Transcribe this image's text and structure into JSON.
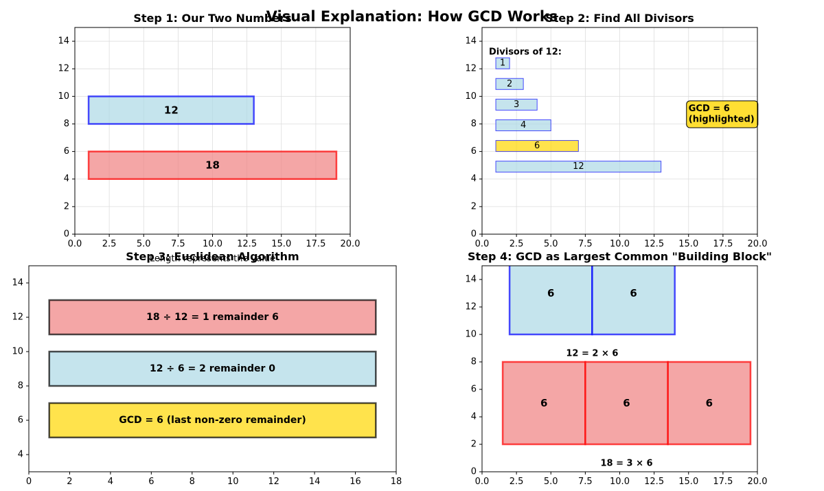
{
  "figure": {
    "title": "Visual Explanation: How GCD Works"
  },
  "colors": {
    "blue_fill": "#add8e6",
    "blue_edge": "#0000ff",
    "red_fill": "#f08080",
    "red_edge": "#ff0000",
    "gold_fill": "#ffd700",
    "dark_edge": "#000000",
    "grid": "#dddddd"
  },
  "panels": [
    {
      "title": "Step 1: Our Two Numbers",
      "xlim": [
        0,
        20
      ],
      "ylim": [
        0,
        15
      ],
      "xticks": [
        0,
        2.5,
        5,
        7.5,
        10,
        12.5,
        15,
        17.5,
        20
      ],
      "yticks": [
        0,
        2,
        4,
        6,
        8,
        10,
        12,
        14
      ],
      "grid": true,
      "rects": [
        {
          "x": 1,
          "y": 8,
          "w": 12,
          "h": 2,
          "fill": "blue",
          "edge": "blue",
          "lw": 2.5,
          "label": "12",
          "bold": true,
          "fs": 15
        },
        {
          "x": 1,
          "y": 4,
          "w": 18,
          "h": 2,
          "fill": "red",
          "edge": "red",
          "lw": 2.5,
          "label": "18",
          "bold": true,
          "fs": 15
        }
      ],
      "texts": [
        {
          "x": 10,
          "y": -1.8,
          "text": "Length represents the value",
          "fs": 13,
          "bold": false,
          "anchor": "middle"
        }
      ],
      "annotations": []
    },
    {
      "title": "Step 2: Find All Divisors",
      "xlim": [
        0,
        20
      ],
      "ylim": [
        0,
        15
      ],
      "xticks": [
        0,
        2.5,
        5,
        7.5,
        10,
        12.5,
        15,
        17.5,
        20
      ],
      "yticks": [
        0,
        2,
        4,
        6,
        8,
        10,
        12,
        14
      ],
      "grid": true,
      "rects": [
        {
          "x": 1,
          "y": 12,
          "w": 1,
          "h": 0.8,
          "fill": "blue",
          "edge": "blue",
          "lw": 1,
          "label": "1",
          "bold": false,
          "fs": 13
        },
        {
          "x": 1,
          "y": 10.5,
          "w": 2,
          "h": 0.8,
          "fill": "blue",
          "edge": "blue",
          "lw": 1,
          "label": "2",
          "bold": false,
          "fs": 13
        },
        {
          "x": 1,
          "y": 9,
          "w": 3,
          "h": 0.8,
          "fill": "blue",
          "edge": "blue",
          "lw": 1,
          "label": "3",
          "bold": false,
          "fs": 13
        },
        {
          "x": 1,
          "y": 7.5,
          "w": 4,
          "h": 0.8,
          "fill": "blue",
          "edge": "blue",
          "lw": 1,
          "label": "4",
          "bold": false,
          "fs": 13
        },
        {
          "x": 1,
          "y": 6,
          "w": 6,
          "h": 0.8,
          "fill": "gold",
          "edge": "blue",
          "lw": 1,
          "label": "6",
          "bold": false,
          "fs": 13
        },
        {
          "x": 1,
          "y": 4.5,
          "w": 12,
          "h": 0.8,
          "fill": "blue",
          "edge": "blue",
          "lw": 1,
          "label": "12",
          "bold": false,
          "fs": 13
        }
      ],
      "texts": [
        {
          "x": 0.5,
          "y": 13.2,
          "text": "Divisors of 12:",
          "fs": 13,
          "bold": true,
          "anchor": "start"
        }
      ],
      "annotations": [
        {
          "x": 15,
          "y": 8.7,
          "lines": [
            "GCD = 6",
            "(highlighted)"
          ],
          "fs": 13
        }
      ]
    },
    {
      "title": "Step 3: Euclidean Algorithm",
      "xlim": [
        0,
        18
      ],
      "ylim": [
        3,
        15
      ],
      "xticks": [
        0,
        2,
        4,
        6,
        8,
        10,
        12,
        14,
        16,
        18
      ],
      "yticks": [
        4,
        6,
        8,
        10,
        12,
        14
      ],
      "grid": false,
      "rects": [
        {
          "x": 1,
          "y": 11,
          "w": 16,
          "h": 2,
          "fill": "red",
          "edge": "dark",
          "lw": 2.5,
          "label": "18 ÷ 12 = 1 remainder 6",
          "bold": true,
          "fs": 14
        },
        {
          "x": 1,
          "y": 8,
          "w": 16,
          "h": 2,
          "fill": "blue",
          "edge": "dark",
          "lw": 2.5,
          "label": "12 ÷ 6 = 2 remainder 0",
          "bold": true,
          "fs": 14
        },
        {
          "x": 1,
          "y": 5,
          "w": 16,
          "h": 2,
          "fill": "gold",
          "edge": "dark",
          "lw": 2.5,
          "label": "GCD = 6 (last non-zero remainder)",
          "bold": true,
          "fs": 14
        }
      ],
      "texts": [],
      "annotations": []
    },
    {
      "title": "Step 4: GCD as Largest Common \"Building Block\"",
      "xlim": [
        0,
        20
      ],
      "ylim": [
        0,
        15
      ],
      "xticks": [
        0,
        2.5,
        5,
        7.5,
        10,
        12.5,
        15,
        17.5,
        20
      ],
      "yticks": [
        0,
        2,
        4,
        6,
        8,
        10,
        12,
        14
      ],
      "grid": false,
      "rects": [
        {
          "x": 2,
          "y": 10,
          "w": 6,
          "h": 6,
          "fill": "blue",
          "edge": "blue",
          "lw": 2.5,
          "label": "6",
          "bold": true,
          "fs": 15
        },
        {
          "x": 8,
          "y": 10,
          "w": 6,
          "h": 6,
          "fill": "blue",
          "edge": "blue",
          "lw": 2.5,
          "label": "6",
          "bold": true,
          "fs": 15
        },
        {
          "x": 1.5,
          "y": 2,
          "w": 6,
          "h": 6,
          "fill": "red",
          "edge": "red",
          "lw": 2.5,
          "label": "6",
          "bold": true,
          "fs": 15
        },
        {
          "x": 7.5,
          "y": 2,
          "w": 6,
          "h": 6,
          "fill": "red",
          "edge": "red",
          "lw": 2.5,
          "label": "6",
          "bold": true,
          "fs": 15
        },
        {
          "x": 13.5,
          "y": 2,
          "w": 6,
          "h": 6,
          "fill": "red",
          "edge": "red",
          "lw": 2.5,
          "label": "6",
          "bold": true,
          "fs": 15
        }
      ],
      "texts": [
        {
          "x": 8,
          "y": 8.6,
          "text": "12 = 2 × 6",
          "fs": 13,
          "bold": true,
          "anchor": "middle"
        },
        {
          "x": 10.5,
          "y": 0.6,
          "text": "18 = 3 × 6",
          "fs": 13,
          "bold": true,
          "anchor": "middle"
        }
      ],
      "annotations": []
    }
  ]
}
